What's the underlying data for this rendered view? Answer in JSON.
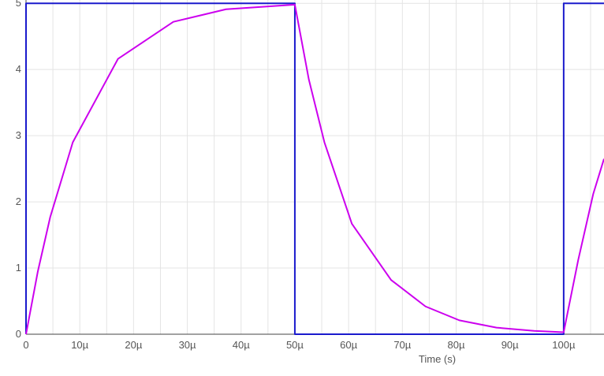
{
  "chart_data": {
    "type": "line",
    "title": "",
    "xlabel": "Time (s)",
    "ylabel": "",
    "xlim": [
      0,
      0.0001075
    ],
    "ylim": [
      0,
      5.05
    ],
    "grid": true,
    "x_ticks": [
      {
        "value": 0,
        "label": "0"
      },
      {
        "value": 1e-05,
        "label": "10µ"
      },
      {
        "value": 2e-05,
        "label": "20µ"
      },
      {
        "value": 3e-05,
        "label": "30µ"
      },
      {
        "value": 4e-05,
        "label": "40µ"
      },
      {
        "value": 5e-05,
        "label": "50µ"
      },
      {
        "value": 6e-05,
        "label": "60µ"
      },
      {
        "value": 7e-05,
        "label": "70µ"
      },
      {
        "value": 8e-05,
        "label": "80µ"
      },
      {
        "value": 9e-05,
        "label": "90µ"
      },
      {
        "value": 0.0001,
        "label": "100µ"
      }
    ],
    "y_ticks": [
      {
        "value": 0,
        "label": "0"
      },
      {
        "value": 1,
        "label": "1"
      },
      {
        "value": 2,
        "label": "2"
      },
      {
        "value": 3,
        "label": "3"
      },
      {
        "value": 4,
        "label": "4"
      },
      {
        "value": 5,
        "label": "5"
      }
    ],
    "series": [
      {
        "color": "#1a1acc",
        "x": [
          0,
          0,
          5e-05,
          5e-05,
          0.0001,
          0.0001,
          0.0001075
        ],
        "y": [
          0,
          5,
          5,
          0,
          0,
          5,
          5
        ]
      },
      {
        "color": "#cc00ee",
        "x": [
          0,
          2.2e-06,
          4.5e-06,
          8.7e-06,
          1.71e-05,
          2.74e-05,
          3.72e-05,
          5e-05,
          5.26e-05,
          5.55e-05,
          6.06e-05,
          6.79e-05,
          7.43e-05,
          8.06e-05,
          8.75e-05,
          9.45e-05,
          0.0001,
          0.0001027,
          0.0001055,
          0.0001075
        ],
        "y": [
          0,
          0.95,
          1.77,
          2.9,
          4.16,
          4.72,
          4.91,
          4.98,
          3.85,
          2.9,
          1.67,
          0.82,
          0.42,
          0.21,
          0.1,
          0.05,
          0.03,
          1.12,
          2.12,
          2.65
        ]
      }
    ]
  }
}
